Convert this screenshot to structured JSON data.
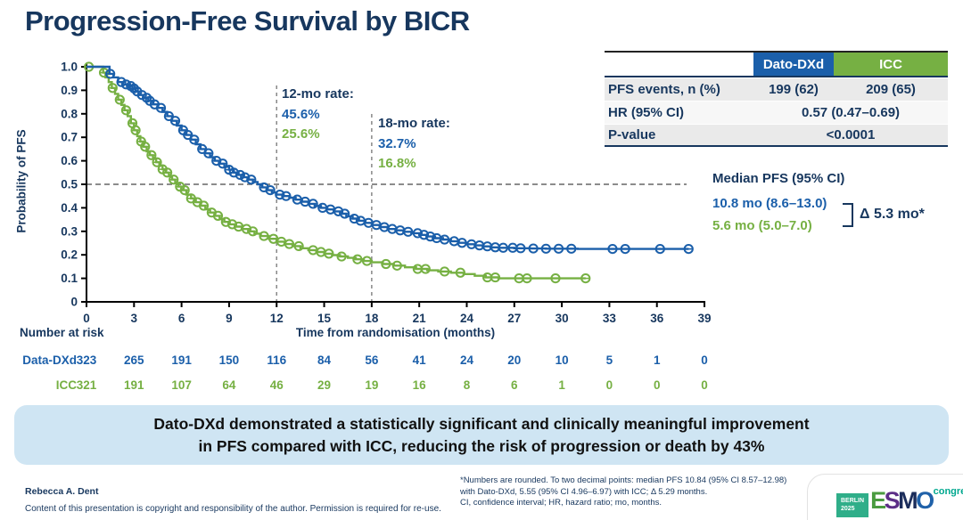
{
  "title": "Progression-Free Survival by BICR",
  "colors": {
    "dato": "#1b5faa",
    "icc": "#76b043",
    "navy": "#17375e",
    "banner_bg": "#cfe5f3"
  },
  "chart_data": {
    "type": "line",
    "subtype": "kaplan-meier-step",
    "title": "Progression-Free Survival by BICR",
    "xlabel": "Time from randomisation (months)",
    "ylabel": "Probability of PFS",
    "xlim": [
      0,
      39
    ],
    "ylim": [
      0,
      1.0
    ],
    "x_ticks": [
      0,
      3,
      6,
      9,
      12,
      15,
      18,
      21,
      24,
      27,
      30,
      33,
      36,
      39
    ],
    "y_ticks": [
      0,
      0.1,
      0.2,
      0.3,
      0.4,
      0.5,
      0.6,
      0.7,
      0.8,
      0.9,
      1.0
    ],
    "grid": false,
    "reference_lines": {
      "horizontal_y": 0.5,
      "vertical_x": [
        12,
        18
      ]
    },
    "series": [
      {
        "name": "Dato-DXd",
        "color": "#1b5faa",
        "steps": [
          [
            0,
            1
          ],
          [
            1.3,
            1
          ],
          [
            1.45,
            0.97
          ],
          [
            1.7,
            0.955
          ],
          [
            2,
            0.935
          ],
          [
            2.3,
            0.925
          ],
          [
            2.6,
            0.918
          ],
          [
            2.9,
            0.908
          ],
          [
            3.1,
            0.895
          ],
          [
            3.3,
            0.88
          ],
          [
            3.6,
            0.868
          ],
          [
            3.9,
            0.855
          ],
          [
            4.2,
            0.84
          ],
          [
            4.5,
            0.825
          ],
          [
            4.8,
            0.808
          ],
          [
            5.1,
            0.79
          ],
          [
            5.4,
            0.77
          ],
          [
            5.7,
            0.75
          ],
          [
            6,
            0.73
          ],
          [
            6.3,
            0.71
          ],
          [
            6.6,
            0.69
          ],
          [
            6.9,
            0.67
          ],
          [
            7.2,
            0.65
          ],
          [
            7.5,
            0.632
          ],
          [
            7.8,
            0.615
          ],
          [
            8.1,
            0.6
          ],
          [
            8.4,
            0.588
          ],
          [
            8.7,
            0.575
          ],
          [
            9,
            0.562
          ],
          [
            9.3,
            0.55
          ],
          [
            9.6,
            0.54
          ],
          [
            9.9,
            0.53
          ],
          [
            10.2,
            0.52
          ],
          [
            10.5,
            0.51
          ],
          [
            10.8,
            0.5
          ],
          [
            11.1,
            0.487
          ],
          [
            11.4,
            0.475
          ],
          [
            11.7,
            0.465
          ],
          [
            12,
            0.456
          ],
          [
            12.4,
            0.45
          ],
          [
            12.8,
            0.443
          ],
          [
            13.2,
            0.435
          ],
          [
            13.6,
            0.426
          ],
          [
            14,
            0.417
          ],
          [
            14.4,
            0.408
          ],
          [
            14.8,
            0.4
          ],
          [
            15.2,
            0.393
          ],
          [
            15.6,
            0.385
          ],
          [
            16,
            0.375
          ],
          [
            16.4,
            0.364
          ],
          [
            16.8,
            0.354
          ],
          [
            17.2,
            0.345
          ],
          [
            17.6,
            0.336
          ],
          [
            18,
            0.327
          ],
          [
            18.5,
            0.318
          ],
          [
            19,
            0.31
          ],
          [
            19.5,
            0.304
          ],
          [
            20,
            0.298
          ],
          [
            20.5,
            0.292
          ],
          [
            21,
            0.285
          ],
          [
            21.5,
            0.278
          ],
          [
            22,
            0.271
          ],
          [
            22.5,
            0.265
          ],
          [
            23,
            0.258
          ],
          [
            23.5,
            0.251
          ],
          [
            24,
            0.245
          ],
          [
            24.5,
            0.24
          ],
          [
            25,
            0.236
          ],
          [
            25.5,
            0.232
          ],
          [
            26,
            0.23
          ],
          [
            27,
            0.228
          ],
          [
            28,
            0.227
          ],
          [
            29,
            0.226
          ],
          [
            31,
            0.225
          ],
          [
            38,
            0.225
          ]
        ],
        "censor_times": [
          1.5,
          2.2,
          2.5,
          2.8,
          3.0,
          3.2,
          3.5,
          3.8,
          4.0,
          4.3,
          4.7,
          5.2,
          5.6,
          6.1,
          6.4,
          6.8,
          7.3,
          7.7,
          8.2,
          8.6,
          9.0,
          9.3,
          9.7,
          10.0,
          10.4,
          11.2,
          11.6,
          12.2,
          12.6,
          13.3,
          13.8,
          14.3,
          14.9,
          15.4,
          15.9,
          16.3,
          16.9,
          17.3,
          17.8,
          18.3,
          18.8,
          19.3,
          19.8,
          20.3,
          20.9,
          21.3,
          21.7,
          22.1,
          22.6,
          23.2,
          23.7,
          24.3,
          24.8,
          25.3,
          25.8,
          26.3,
          26.9,
          27.4,
          28.2,
          29.0,
          29.8,
          30.6,
          33.2,
          34.0,
          36.2,
          38.0
        ],
        "rate_12mo": "45.6%",
        "rate_18mo": "32.7%",
        "median_pfs": "10.8 mo (8.6–13.0)"
      },
      {
        "name": "ICC",
        "color": "#76b043",
        "steps": [
          [
            0,
            1
          ],
          [
            0.9,
            1
          ],
          [
            1.05,
            0.975
          ],
          [
            1.2,
            0.955
          ],
          [
            1.4,
            0.935
          ],
          [
            1.6,
            0.91
          ],
          [
            1.8,
            0.885
          ],
          [
            2,
            0.86
          ],
          [
            2.2,
            0.838
          ],
          [
            2.4,
            0.815
          ],
          [
            2.6,
            0.79
          ],
          [
            2.8,
            0.76
          ],
          [
            3,
            0.73
          ],
          [
            3.2,
            0.705
          ],
          [
            3.4,
            0.682
          ],
          [
            3.6,
            0.66
          ],
          [
            3.8,
            0.64
          ],
          [
            4,
            0.624
          ],
          [
            4.2,
            0.609
          ],
          [
            4.4,
            0.594
          ],
          [
            4.6,
            0.579
          ],
          [
            4.8,
            0.564
          ],
          [
            5,
            0.55
          ],
          [
            5.2,
            0.535
          ],
          [
            5.4,
            0.52
          ],
          [
            5.6,
            0.505
          ],
          [
            5.8,
            0.49
          ],
          [
            6,
            0.475
          ],
          [
            6.3,
            0.456
          ],
          [
            6.6,
            0.44
          ],
          [
            6.9,
            0.424
          ],
          [
            7.2,
            0.409
          ],
          [
            7.5,
            0.394
          ],
          [
            7.8,
            0.38
          ],
          [
            8.1,
            0.366
          ],
          [
            8.4,
            0.352
          ],
          [
            8.7,
            0.34
          ],
          [
            9,
            0.33
          ],
          [
            9.4,
            0.32
          ],
          [
            9.8,
            0.31
          ],
          [
            10.2,
            0.3
          ],
          [
            10.6,
            0.29
          ],
          [
            11,
            0.28
          ],
          [
            11.5,
            0.268
          ],
          [
            12,
            0.256
          ],
          [
            12.5,
            0.246
          ],
          [
            13,
            0.237
          ],
          [
            13.5,
            0.228
          ],
          [
            14,
            0.22
          ],
          [
            14.5,
            0.212
          ],
          [
            15,
            0.205
          ],
          [
            15.5,
            0.199
          ],
          [
            16,
            0.193
          ],
          [
            16.5,
            0.187
          ],
          [
            17,
            0.181
          ],
          [
            17.5,
            0.174
          ],
          [
            18,
            0.168
          ],
          [
            18.7,
            0.161
          ],
          [
            19.4,
            0.154
          ],
          [
            20.1,
            0.147
          ],
          [
            20.8,
            0.14
          ],
          [
            21.5,
            0.134
          ],
          [
            22.2,
            0.129
          ],
          [
            23,
            0.124
          ],
          [
            23.8,
            0.118
          ],
          [
            24.5,
            0.111
          ],
          [
            25.2,
            0.104
          ],
          [
            26,
            0.1
          ],
          [
            31.5,
            0.1
          ]
        ],
        "censor_times": [
          0.15,
          1.1,
          1.65,
          2.1,
          2.5,
          2.9,
          3.1,
          3.45,
          3.7,
          4.1,
          4.45,
          4.8,
          5.1,
          5.5,
          5.9,
          6.2,
          6.6,
          7.0,
          7.4,
          7.9,
          8.3,
          8.8,
          9.2,
          9.6,
          10.1,
          10.5,
          11.2,
          11.8,
          12.3,
          12.8,
          13.4,
          14.3,
          14.8,
          15.3,
          16.1,
          17.1,
          17.7,
          18.9,
          19.6,
          20.9,
          21.4,
          22.6,
          23.6,
          25.3,
          25.8,
          27.3,
          27.8,
          29.6,
          31.5
        ],
        "rate_12mo": "25.6%",
        "rate_18mo": "16.8%",
        "median_pfs": "5.6 mo (5.0–7.0)"
      }
    ]
  },
  "annotations": {
    "rate12": {
      "label": "12-mo rate:",
      "dato": "45.6%",
      "icc": "25.6%"
    },
    "rate18": {
      "label": "18-mo rate:",
      "dato": "32.7%",
      "icc": "16.8%"
    }
  },
  "stats_table": {
    "col_headers": {
      "dato": "Dato-DXd",
      "icc": "ICC"
    },
    "rows": [
      {
        "label": "PFS events, n (%)",
        "dato": "199 (62)",
        "icc": "209 (65)"
      },
      {
        "label": "HR (95% CI)",
        "value": "0.57 (0.47–0.69)"
      },
      {
        "label": "P-value",
        "value": "<0.0001"
      }
    ]
  },
  "median": {
    "title": "Median PFS (95% CI)",
    "dato": "10.8 mo (8.6–13.0)",
    "icc": "5.6 mo (5.0–7.0)",
    "delta": "Δ 5.3 mo*"
  },
  "risk_table": {
    "title": "Number at risk",
    "rows": [
      {
        "label": "Data-DXd",
        "values": [
          323,
          265,
          191,
          150,
          116,
          84,
          56,
          41,
          24,
          20,
          10,
          5,
          1,
          0
        ]
      },
      {
        "label": "ICC",
        "values": [
          321,
          191,
          107,
          64,
          46,
          29,
          19,
          16,
          8,
          6,
          1,
          0,
          0,
          0
        ]
      }
    ]
  },
  "banner": {
    "line1": "Dato-DXd demonstrated a statistically significant and clinically meaningful improvement",
    "line2": "in PFS compared with ICC, reducing the risk of progression or death by 43%"
  },
  "footer": {
    "author": "Rebecca A. Dent",
    "copyright": "Content of this presentation is copyright and responsibility of the author. Permission is required for re-use.",
    "footnote_line1": "*Numbers are rounded. To two decimal points: median PFS 10.84 (95% CI 8.57–12.98)",
    "footnote_line2": "with Dato-DXd, 5.55 (95% CI 4.96–6.97) with ICC; Δ 5.29 months.",
    "footnote_line3": "CI, confidence interval; HR, hazard ratio; mo, months.",
    "logo": {
      "badge_line1": "BERLIN",
      "badge_line2": "2025",
      "e": "E",
      "s": "S",
      "m": "M",
      "o": "O",
      "congress": "congress"
    }
  }
}
